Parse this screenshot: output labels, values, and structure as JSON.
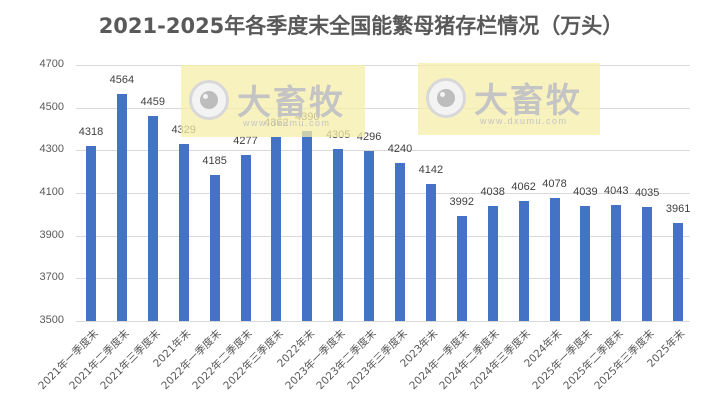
{
  "title": "2021-2025年各季度末全国能繁母猪存栏情况（万头）",
  "watermark": {
    "brand": "大畜牧",
    "url": "www.dxumu.com",
    "icon": "eye-logo-icon"
  },
  "colors": {
    "bar": "#4472c4",
    "grid": "#d9d9d9",
    "text": "#595959",
    "watermark_bg": "#f5eeaa"
  },
  "chart_data": {
    "type": "bar",
    "title": "2021-2025年各季度末全国能繁母猪存栏情况（万头）",
    "xlabel": "",
    "ylabel": "",
    "ylim": [
      3500,
      4700
    ],
    "yticks": [
      3500,
      3700,
      3900,
      4100,
      4300,
      4500,
      4700
    ],
    "grid": true,
    "legend": "none",
    "categories": [
      "2021年一季度末",
      "2021年二季度末",
      "2021年三季度末",
      "2021年末",
      "2022年一季度末",
      "2022年二季度末",
      "2022年三季度末",
      "2022年末",
      "2023年一季度末",
      "2023年二季度末",
      "2023年三季度末",
      "2023年末",
      "2024年一季度末",
      "2024年二季度末",
      "2024年三季度末",
      "2024年末",
      "2025年一季度末",
      "2025年二季度末",
      "2025年三季度末",
      "2025年末"
    ],
    "values": [
      4318,
      4564,
      4459,
      4329,
      4185,
      4277,
      4362,
      4390,
      4305,
      4296,
      4240,
      4142,
      3992,
      4038,
      4062,
      4078,
      4039,
      4043,
      4035,
      3961
    ]
  }
}
